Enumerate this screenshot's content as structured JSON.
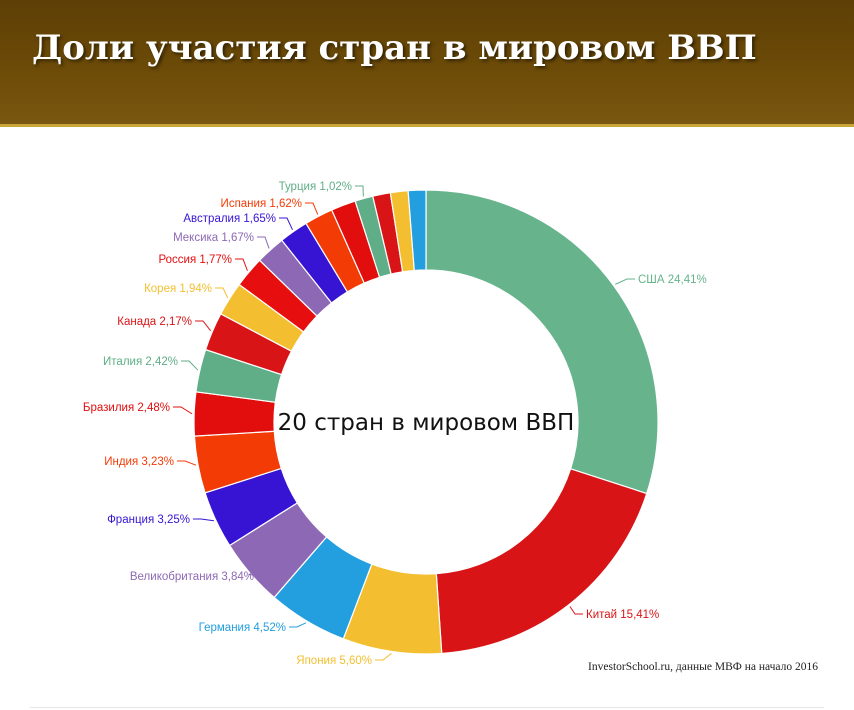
{
  "header": {
    "title": "Доли участия стран в мировом ВВП"
  },
  "source_note": "InvestorSchool.ru, данные МВФ на начало 2016",
  "colors": {
    "header_bg": "#6c4b08",
    "header_border": "#c9a53a"
  },
  "chart_data": {
    "type": "pie",
    "donut": true,
    "center_label": "20 стран в мировом ВВП",
    "start": "top",
    "direction": "clockwise",
    "slices": [
      {
        "country": "США",
        "value": 24.41,
        "label": "США 24,41%",
        "color": "#66b38c"
      },
      {
        "country": "Китай",
        "value": 15.41,
        "label": "Китай 15,41%",
        "color": "#d81417"
      },
      {
        "country": "Япония",
        "value": 5.6,
        "label": "Япония 5,60%",
        "color": "#f3bf30"
      },
      {
        "country": "Германия",
        "value": 4.52,
        "label": "Германия 4,52%",
        "color": "#239fdf"
      },
      {
        "country": "Великобритания",
        "value": 3.84,
        "label": "Великобритания 3,84%",
        "color": "#8d69b5"
      },
      {
        "country": "Франция",
        "value": 3.25,
        "label": "Франция 3,25%",
        "color": "#3714d3"
      },
      {
        "country": "Индия",
        "value": 3.23,
        "label": "Индия 3,23%",
        "color": "#f33b06"
      },
      {
        "country": "Бразилия",
        "value": 2.48,
        "label": "Бразилия 2,48%",
        "color": "#e20d0d"
      },
      {
        "country": "Италия",
        "value": 2.42,
        "label": "Италия 2,42%",
        "color": "#5fae87"
      },
      {
        "country": "Канада",
        "value": 2.17,
        "label": "Канада 2,17%",
        "color": "#d81417"
      },
      {
        "country": "Корея",
        "value": 1.94,
        "label": "Корея 1,94%",
        "color": "#f3bf30"
      },
      {
        "country": "Россия",
        "value": 1.77,
        "label": "Россия 1,77%",
        "color": "#e60e0e"
      },
      {
        "country": "Мексика",
        "value": 1.67,
        "label": "Мексика 1,67%",
        "color": "#8d69b5"
      },
      {
        "country": "Австралия",
        "value": 1.65,
        "label": "Австралия 1,65%",
        "color": "#3714d3"
      },
      {
        "country": "Испания",
        "value": 1.62,
        "label": "Испания 1,62%",
        "color": "#f33b06"
      },
      {
        "country": "",
        "value": 1.4,
        "label": "",
        "color": "#e20d0d"
      },
      {
        "country": "Турция",
        "value": 1.02,
        "label": "Турция 1,02%",
        "color": "#5fae87"
      },
      {
        "country": "",
        "value": 1.0,
        "label": "",
        "color": "#d81417"
      },
      {
        "country": "",
        "value": 1.0,
        "label": "",
        "color": "#f3bf30"
      },
      {
        "country": "",
        "value": 1.0,
        "label": "",
        "color": "#239fdf"
      }
    ]
  }
}
